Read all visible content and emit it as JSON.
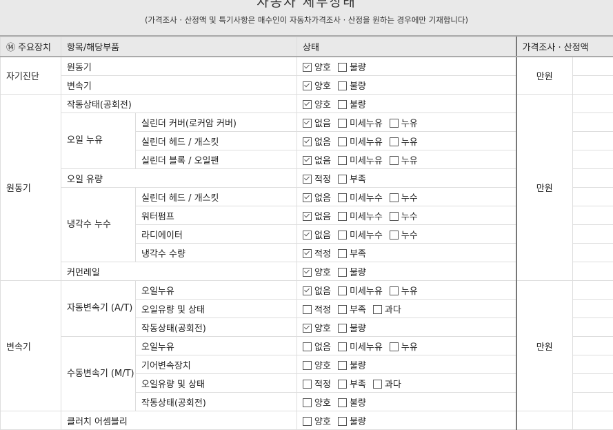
{
  "title": "자동차 세부상태",
  "subtitle": "(가격조사 · 산정액 및 특기사항은 매수인이 자동차가격조사 · 산정을 원하는 경우에만 기재합니다)",
  "headers": {
    "main": "⑭ 주요장치",
    "item": "항목/해당부품",
    "status": "상태",
    "price": "가격조사 · 산정액"
  },
  "colors": {
    "header_bg": "#e9e9e9",
    "border": "#dddddd",
    "separator": "#777777"
  },
  "groups": [
    {
      "label": "자기진단",
      "price": "만원",
      "rows": [
        {
          "item": "원동기",
          "options": [
            {
              "label": "양호",
              "checked": true
            },
            {
              "label": "불량",
              "checked": false
            }
          ]
        },
        {
          "item": "변속기",
          "options": [
            {
              "label": "양호",
              "checked": true
            },
            {
              "label": "불량",
              "checked": false
            }
          ]
        }
      ]
    },
    {
      "label": "원동기",
      "price": "만원",
      "rows": [
        {
          "item": "작동상태(공회전)",
          "options": [
            {
              "label": "양호",
              "checked": true
            },
            {
              "label": "불량",
              "checked": false
            }
          ]
        },
        {
          "sub": "오일 누유",
          "item": "실린더 커버(로커암 커버)",
          "options": [
            {
              "label": "없음",
              "checked": true
            },
            {
              "label": "미세누유",
              "checked": false
            },
            {
              "label": "누유",
              "checked": false
            }
          ]
        },
        {
          "sub": "오일 누유",
          "item": "실린더 헤드 / 개스킷",
          "options": [
            {
              "label": "없음",
              "checked": true
            },
            {
              "label": "미세누유",
              "checked": false
            },
            {
              "label": "누유",
              "checked": false
            }
          ]
        },
        {
          "sub": "오일 누유",
          "item": "실린더 블록 / 오일팬",
          "options": [
            {
              "label": "없음",
              "checked": true
            },
            {
              "label": "미세누유",
              "checked": false
            },
            {
              "label": "누유",
              "checked": false
            }
          ]
        },
        {
          "item": "오일 유량",
          "options": [
            {
              "label": "적정",
              "checked": true
            },
            {
              "label": "부족",
              "checked": false
            }
          ]
        },
        {
          "sub": "냉각수 누수",
          "item": "실린더 헤드 / 개스킷",
          "options": [
            {
              "label": "없음",
              "checked": true
            },
            {
              "label": "미세누수",
              "checked": false
            },
            {
              "label": "누수",
              "checked": false
            }
          ]
        },
        {
          "sub": "냉각수 누수",
          "item": "워터펌프",
          "options": [
            {
              "label": "없음",
              "checked": true
            },
            {
              "label": "미세누수",
              "checked": false
            },
            {
              "label": "누수",
              "checked": false
            }
          ]
        },
        {
          "sub": "냉각수 누수",
          "item": "라디에이터",
          "options": [
            {
              "label": "없음",
              "checked": true
            },
            {
              "label": "미세누수",
              "checked": false
            },
            {
              "label": "누수",
              "checked": false
            }
          ]
        },
        {
          "sub": "냉각수 누수",
          "item": "냉각수 수량",
          "options": [
            {
              "label": "적정",
              "checked": true
            },
            {
              "label": "부족",
              "checked": false
            }
          ]
        },
        {
          "item": "커먼레일",
          "options": [
            {
              "label": "양호",
              "checked": true
            },
            {
              "label": "불량",
              "checked": false
            }
          ]
        }
      ]
    },
    {
      "label": "변속기",
      "price": "만원",
      "rows": [
        {
          "sub": "자동변속기 (A/T)",
          "item": "오일누유",
          "options": [
            {
              "label": "없음",
              "checked": true
            },
            {
              "label": "미세누유",
              "checked": false
            },
            {
              "label": "누유",
              "checked": false
            }
          ]
        },
        {
          "sub": "자동변속기 (A/T)",
          "item": "오일유량 및 상태",
          "options": [
            {
              "label": "적정",
              "checked": false
            },
            {
              "label": "부족",
              "checked": false
            },
            {
              "label": "과다",
              "checked": false
            }
          ]
        },
        {
          "sub": "자동변속기 (A/T)",
          "item": "작동상태(공회전)",
          "options": [
            {
              "label": "양호",
              "checked": true
            },
            {
              "label": "불량",
              "checked": false
            }
          ]
        },
        {
          "sub": "수동변속기 (M/T)",
          "item": "오일누유",
          "options": [
            {
              "label": "없음",
              "checked": false
            },
            {
              "label": "미세누유",
              "checked": false
            },
            {
              "label": "누유",
              "checked": false
            }
          ]
        },
        {
          "sub": "수동변속기 (M/T)",
          "item": "기어변속장치",
          "options": [
            {
              "label": "양호",
              "checked": false
            },
            {
              "label": "불량",
              "checked": false
            }
          ]
        },
        {
          "sub": "수동변속기 (M/T)",
          "item": "오일유량 및 상태",
          "options": [
            {
              "label": "적정",
              "checked": false
            },
            {
              "label": "부족",
              "checked": false
            },
            {
              "label": "과다",
              "checked": false
            }
          ]
        },
        {
          "sub": "수동변속기 (M/T)",
          "item": "작동상태(공회전)",
          "options": [
            {
              "label": "양호",
              "checked": false
            },
            {
              "label": "불량",
              "checked": false
            }
          ]
        }
      ]
    },
    {
      "label": "",
      "price": "",
      "rows": [
        {
          "item": "클러치 어셈블리",
          "options": [
            {
              "label": "양호",
              "checked": false
            },
            {
              "label": "불량",
              "checked": false
            }
          ]
        }
      ]
    }
  ]
}
